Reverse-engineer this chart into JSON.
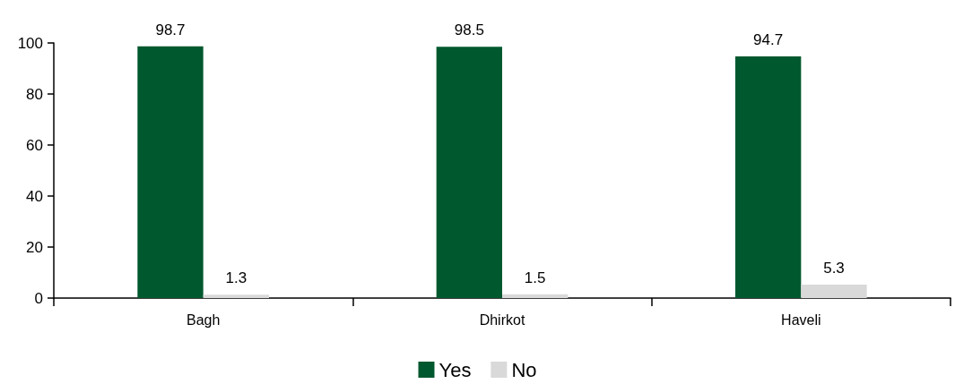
{
  "chart_data": {
    "type": "bar",
    "categories": [
      "Bagh",
      "Dhirkot",
      "Haveli"
    ],
    "series": [
      {
        "name": "Yes",
        "color": "#00582e",
        "values": [
          98.7,
          98.5,
          94.7
        ]
      },
      {
        "name": "No",
        "color": "#d9d9d9",
        "values": [
          1.3,
          1.5,
          5.3
        ]
      }
    ],
    "ylim": [
      0,
      100
    ],
    "yticks": [
      0,
      20,
      40,
      60,
      80,
      100
    ],
    "grid": false,
    "legend": "bottom",
    "data_labels": true
  }
}
